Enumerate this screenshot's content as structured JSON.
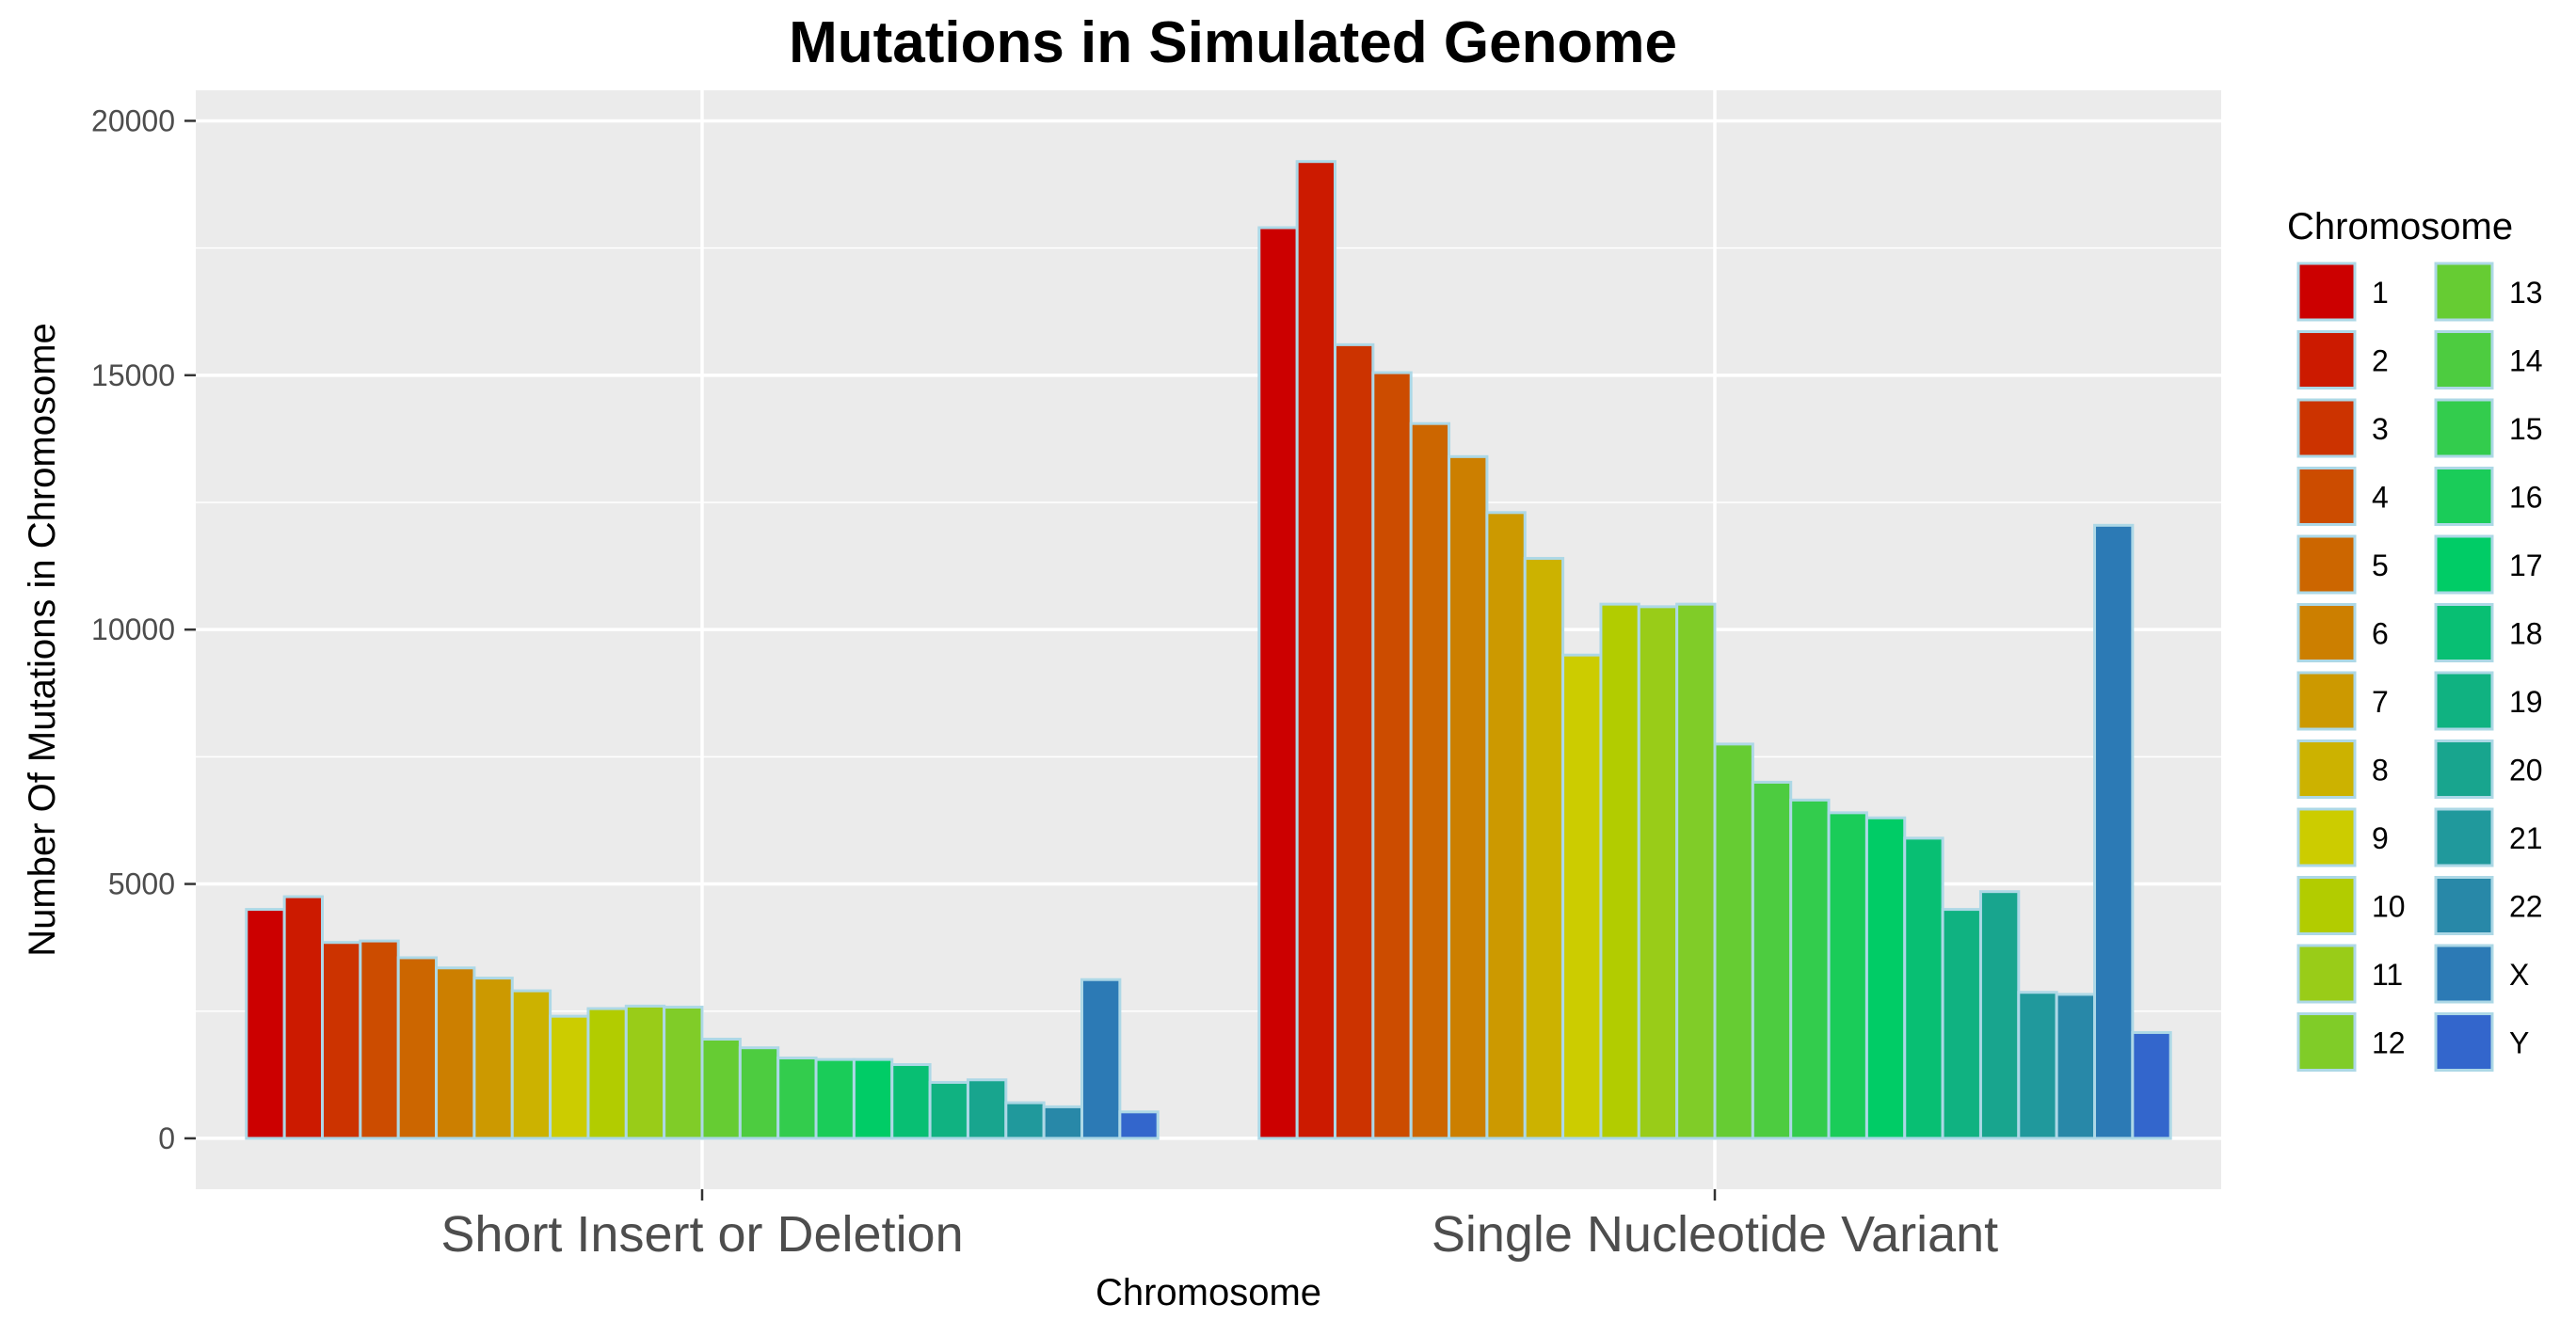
{
  "chart_data": {
    "type": "bar",
    "title": "Mutations in Simulated Genome",
    "xlabel": "Chromosome",
    "ylabel": "Number Of Mutations in Chromosome",
    "ylim": [
      -1000,
      20600
    ],
    "yticks": [
      0,
      5000,
      10000,
      15000,
      20000
    ],
    "grid": true,
    "legend": {
      "title": "Chromosome",
      "position": "right",
      "columns": 2
    },
    "categories": [
      "Short Insert or Deletion",
      "Single Nucleotide Variant"
    ],
    "series": [
      {
        "name": "1",
        "color": "#CC0000",
        "values": [
          4500,
          17900
        ]
      },
      {
        "name": "2",
        "color": "#CC1A00",
        "values": [
          4750,
          19200
        ]
      },
      {
        "name": "3",
        "color": "#CC3300",
        "values": [
          3850,
          15600
        ]
      },
      {
        "name": "4",
        "color": "#CC4C00",
        "values": [
          3880,
          15050
        ]
      },
      {
        "name": "5",
        "color": "#CC6600",
        "values": [
          3550,
          14050
        ]
      },
      {
        "name": "6",
        "color": "#CC7F00",
        "values": [
          3350,
          13400
        ]
      },
      {
        "name": "7",
        "color": "#CC9900",
        "values": [
          3150,
          12300
        ]
      },
      {
        "name": "8",
        "color": "#CCB200",
        "values": [
          2900,
          11400
        ]
      },
      {
        "name": "9",
        "color": "#CCCC00",
        "values": [
          2400,
          9500
        ]
      },
      {
        "name": "10",
        "color": "#B2CC00",
        "values": [
          2550,
          10500
        ]
      },
      {
        "name": "11",
        "color": "#99CC18",
        "values": [
          2600,
          10450
        ]
      },
      {
        "name": "12",
        "color": "#80CC28",
        "values": [
          2580,
          10500
        ]
      },
      {
        "name": "13",
        "color": "#66CC33",
        "values": [
          1950,
          7750
        ]
      },
      {
        "name": "14",
        "color": "#4DCC40",
        "values": [
          1780,
          7000
        ]
      },
      {
        "name": "15",
        "color": "#33CC4D",
        "values": [
          1580,
          6650
        ]
      },
      {
        "name": "16",
        "color": "#1ACC59",
        "values": [
          1550,
          6400
        ]
      },
      {
        "name": "17",
        "color": "#00CC66",
        "values": [
          1550,
          6300
        ]
      },
      {
        "name": "18",
        "color": "#08BF73",
        "values": [
          1450,
          5900
        ]
      },
      {
        "name": "19",
        "color": "#10B281",
        "values": [
          1100,
          4500
        ]
      },
      {
        "name": "20",
        "color": "#18A58E",
        "values": [
          1150,
          4850
        ]
      },
      {
        "name": "21",
        "color": "#20999C",
        "values": [
          700,
          2870
        ]
      },
      {
        "name": "22",
        "color": "#2888A8",
        "values": [
          620,
          2830
        ]
      },
      {
        "name": "X",
        "color": "#2C7AB5",
        "values": [
          3120,
          12050
        ]
      },
      {
        "name": "Y",
        "color": "#3366CC",
        "values": [
          520,
          2080
        ]
      }
    ]
  }
}
